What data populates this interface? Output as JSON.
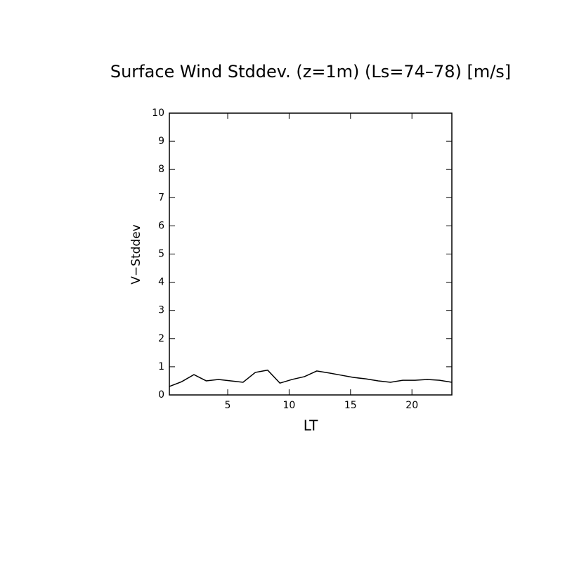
{
  "chart_data": {
    "type": "line",
    "title": "Surface Wind Stddev. (z=1m) (Ls=74–78) [m/s]",
    "x_label": "LT",
    "y_label": "V−Stddev",
    "x": [
      0.25,
      1.25,
      2.25,
      3.25,
      4.25,
      5.25,
      6.25,
      7.25,
      8.25,
      9.25,
      10.25,
      11.25,
      12.25,
      13.25,
      14.25,
      15.25,
      16.25,
      17.25,
      18.25,
      19.25,
      20.25,
      21.25,
      22.25,
      23.25
    ],
    "series": [
      {
        "color": "#000000",
        "values": [
          0.3,
          0.47,
          0.72,
          0.5,
          0.55,
          0.5,
          0.45,
          0.8,
          0.88,
          0.42,
          0.55,
          0.65,
          0.85,
          0.78,
          0.7,
          0.62,
          0.57,
          0.5,
          0.45,
          0.52,
          0.52,
          0.55,
          0.52,
          0.45
        ]
      }
    ],
    "xlim": [
      0.25,
      23.25
    ],
    "xticks": [
      5,
      10,
      15,
      20
    ],
    "ylim": [
      0,
      10
    ],
    "yticks": [
      0,
      1,
      2,
      3,
      4,
      5,
      6,
      7,
      8,
      9,
      10
    ]
  }
}
